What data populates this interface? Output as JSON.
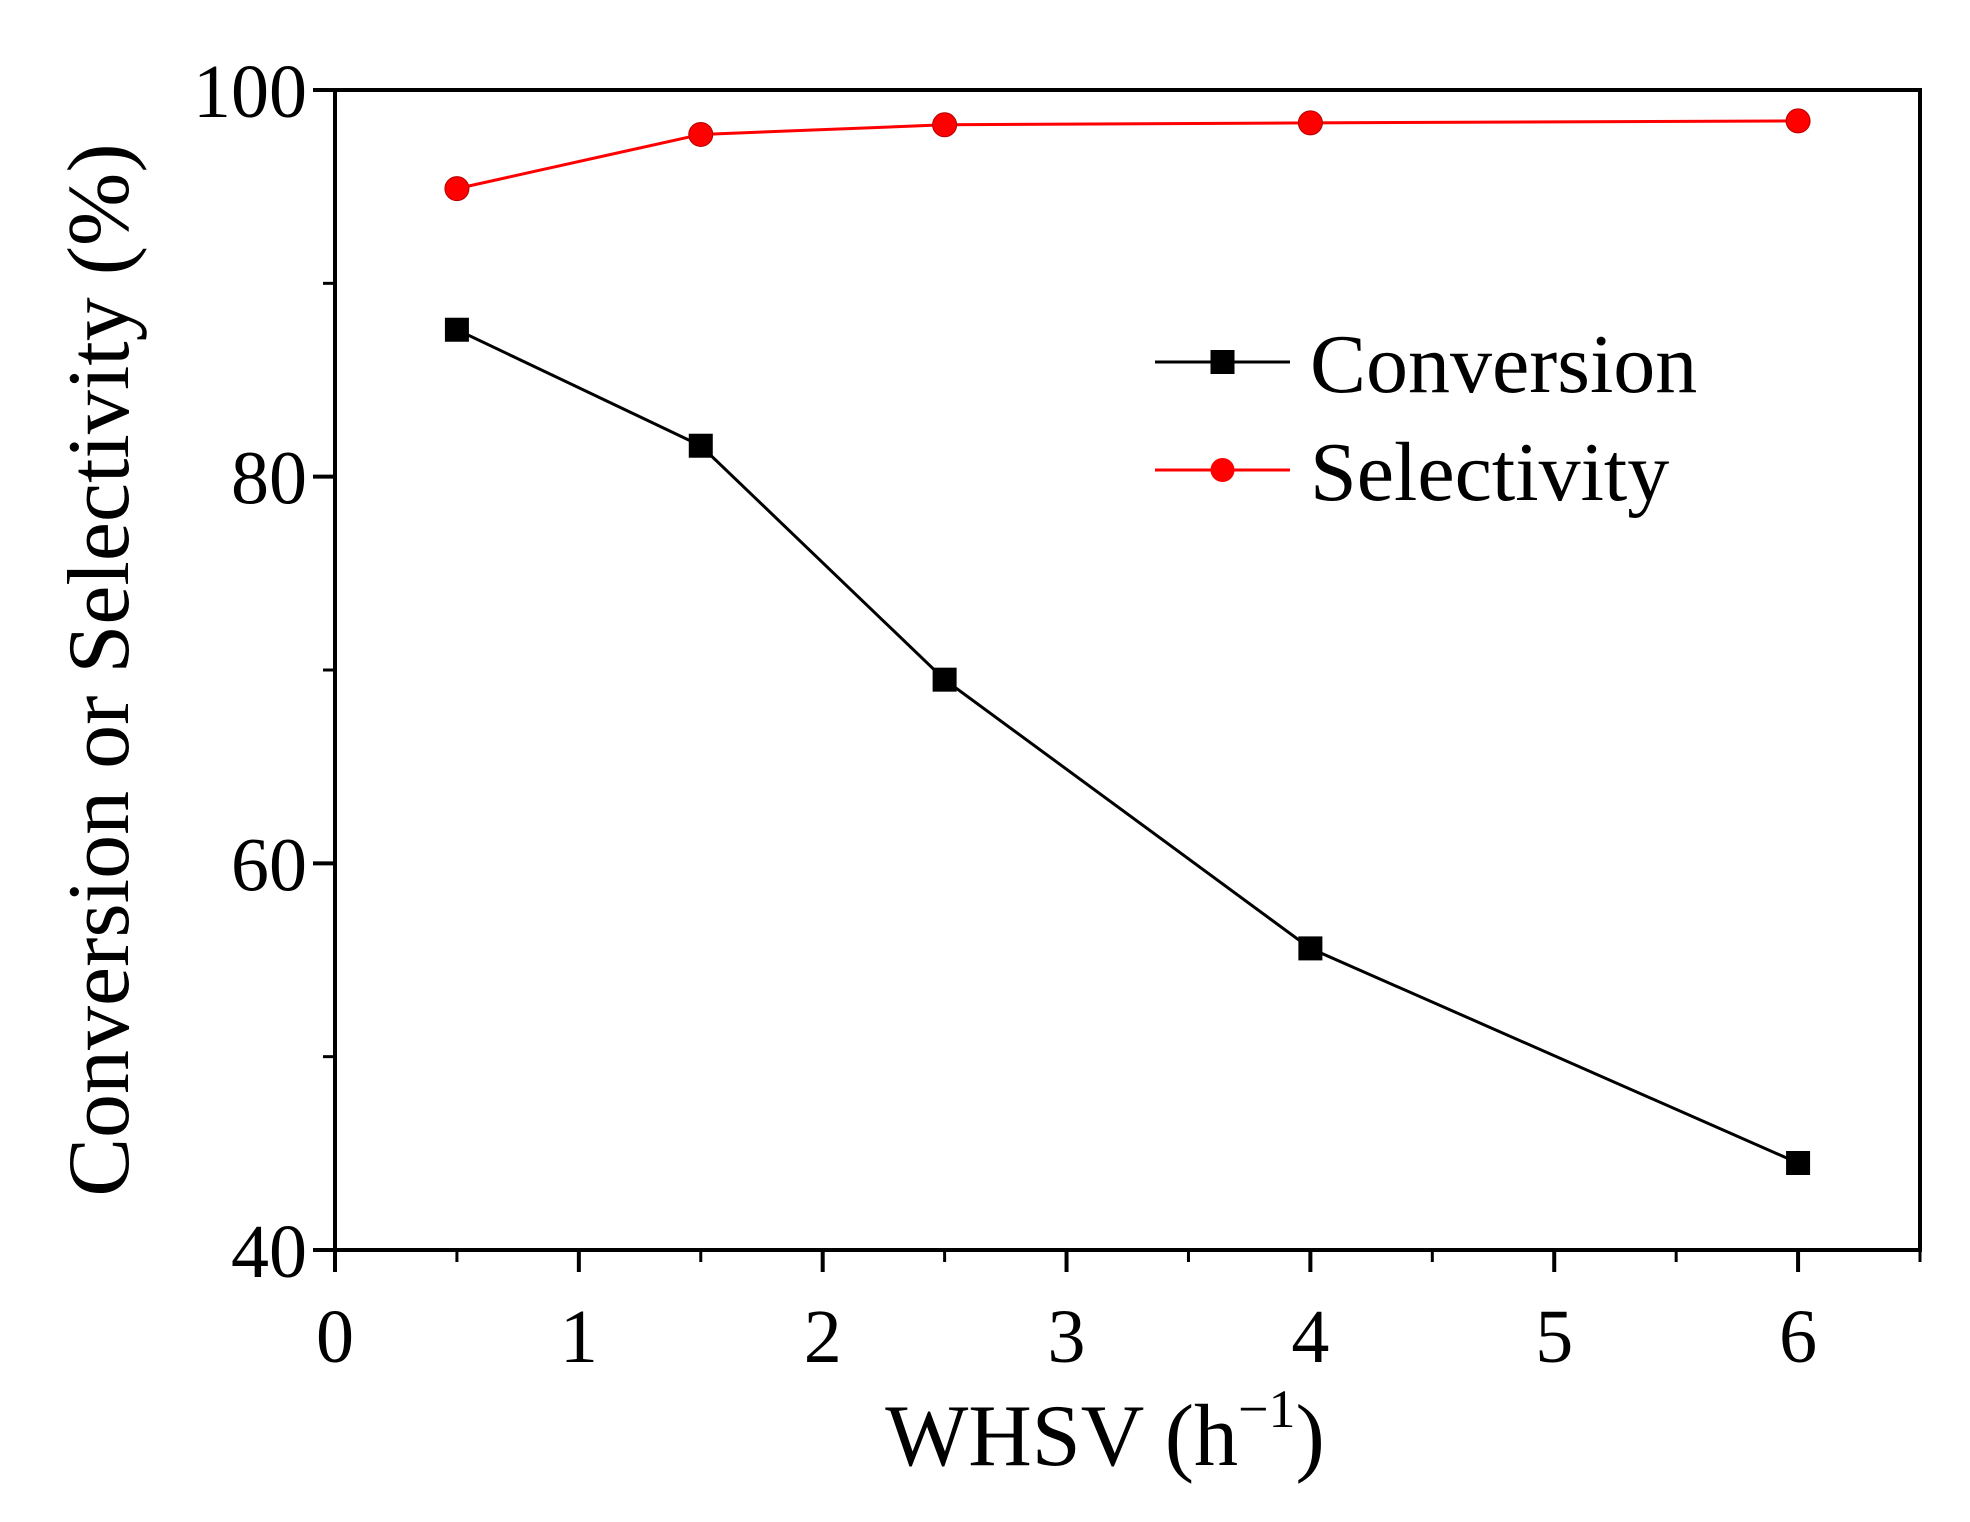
{
  "chart_data": {
    "type": "line",
    "title": "",
    "xlabel_main": "WHSV (h",
    "xlabel_sup": "−1",
    "xlabel_close": ")",
    "ylabel": "Conversion or Selectivity (%)",
    "xlim": [
      0,
      6.5
    ],
    "ylim": [
      40,
      100
    ],
    "xticks": [
      0,
      1,
      2,
      3,
      4,
      5,
      6
    ],
    "xtick_labels": [
      "0",
      "1",
      "2",
      "3",
      "4",
      "5",
      "6"
    ],
    "yticks": [
      40,
      60,
      80,
      100
    ],
    "ytick_labels": [
      "40",
      "60",
      "80",
      "100"
    ],
    "x_minor_ticks": [
      0.5,
      1.5,
      2.5,
      3.5,
      4.5,
      5.5,
      6.5
    ],
    "y_minor_ticks": [
      50,
      70,
      90
    ],
    "legend_position": "upper-right",
    "series": [
      {
        "name": "Conversion",
        "color": "#000000",
        "marker": "square",
        "x": [
          0.5,
          1.5,
          2.5,
          4,
          6
        ],
        "y": [
          87.6,
          81.6,
          69.5,
          55.6,
          44.5
        ]
      },
      {
        "name": "Selectivity",
        "color": "#ff0000",
        "marker": "circle",
        "x": [
          0.5,
          1.5,
          2.5,
          4,
          6
        ],
        "y": [
          94.9,
          97.7,
          98.2,
          98.3,
          98.4
        ]
      }
    ]
  }
}
